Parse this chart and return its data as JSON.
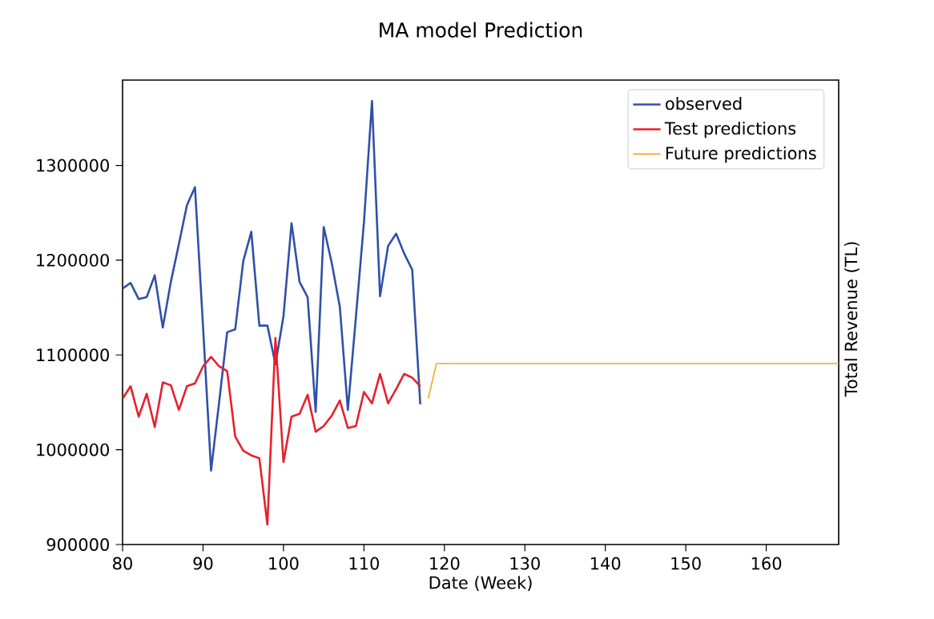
{
  "chart_data": {
    "type": "line",
    "title": "MA model Prediction",
    "xlabel": "Date (Week)",
    "ylabel": "Total Revenue (TL)",
    "xlim": [
      80,
      169
    ],
    "xticks": [
      80,
      90,
      100,
      110,
      120,
      130,
      140,
      150,
      160
    ],
    "ylim": [
      900000,
      1390000
    ],
    "yticks": [
      900000,
      1000000,
      1100000,
      1200000,
      1300000
    ],
    "legend": "top right",
    "series": [
      {
        "name": "observed",
        "color": "#3050a8",
        "x": [
          80,
          81,
          82,
          83,
          84,
          85,
          86,
          87,
          88,
          89,
          90,
          91,
          92,
          93,
          94,
          95,
          96,
          97,
          98,
          99,
          100,
          101,
          102,
          103,
          104,
          105,
          106,
          107,
          108,
          109,
          110,
          111,
          112,
          113,
          114,
          115,
          116,
          117
        ],
        "values": [
          1170000,
          1176000,
          1159000,
          1161000,
          1184000,
          1129000,
          1177000,
          1217000,
          1258000,
          1277000,
          1130000,
          978000,
          1050000,
          1124000,
          1127000,
          1199000,
          1230000,
          1131000,
          1131000,
          1090000,
          1141000,
          1239000,
          1177000,
          1161000,
          1040000,
          1235000,
          1197000,
          1151000,
          1042000,
          1140000,
          1240000,
          1368000,
          1162000,
          1215000,
          1228000,
          1207000,
          1190000,
          1048000
        ]
      },
      {
        "name": "Test predictions",
        "color": "#e8202a",
        "x": [
          80,
          81,
          82,
          83,
          84,
          85,
          86,
          87,
          88,
          89,
          90,
          91,
          92,
          93,
          94,
          95,
          96,
          97,
          98,
          99,
          100,
          101,
          102,
          103,
          104,
          105,
          106,
          107,
          108,
          109,
          110,
          111,
          112,
          113,
          114,
          115,
          116,
          117
        ],
        "values": [
          1054000,
          1067000,
          1035000,
          1059000,
          1024000,
          1071000,
          1068000,
          1042000,
          1067000,
          1070000,
          1088000,
          1098000,
          1088000,
          1083000,
          1014000,
          999000,
          994000,
          991000,
          921000,
          1118000,
          987000,
          1035000,
          1038000,
          1058000,
          1019000,
          1025000,
          1036000,
          1052000,
          1023000,
          1025000,
          1061000,
          1049000,
          1080000,
          1049000,
          1064000,
          1080000,
          1076000,
          1067000
        ]
      },
      {
        "name": "Future predictions",
        "color": "#f5a623",
        "x": [
          118,
          119,
          169
        ],
        "values": [
          1054000,
          1091000,
          1091000
        ]
      }
    ]
  }
}
